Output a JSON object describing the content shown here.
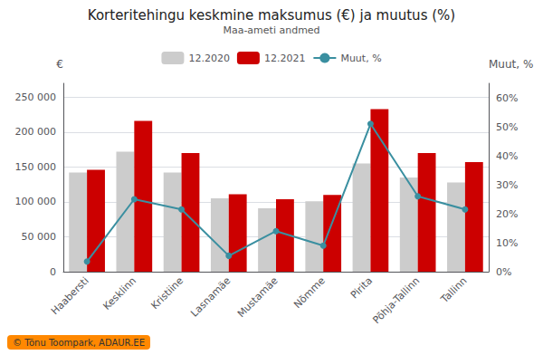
{
  "chart_data": {
    "type": "bar",
    "title": "Korteritehingu keskmine maksumus (€) ja muutus (%)",
    "subtitle": "Maa-ameti andmed",
    "ylabel": "€",
    "y2label": "Muut, %",
    "annotation": "© Tõnu Toompark, ADAUR.EE",
    "categories": [
      "Haabersti",
      "Kesklinn",
      "Kristiine",
      "Lasnamäe",
      "Mustamäe",
      "Nõmme",
      "Pirita",
      "Põhja-Tallinn",
      "Tallinn"
    ],
    "series": [
      {
        "name": "12.2020",
        "type": "bar",
        "color": "#cccccc",
        "values": [
          142000,
          172000,
          142000,
          105000,
          91000,
          101000,
          155000,
          135000,
          128000
        ]
      },
      {
        "name": "12.2021",
        "type": "bar",
        "color": "#cc0000",
        "values": [
          146000,
          216000,
          170000,
          111000,
          104000,
          110000,
          233000,
          170000,
          157000
        ]
      },
      {
        "name": "Muut, %",
        "type": "line",
        "axis": "y2",
        "color": "#3a8fa0",
        "marker": "circle",
        "values": [
          0.035,
          0.25,
          0.215,
          0.055,
          0.14,
          0.09,
          0.51,
          0.26,
          0.215
        ]
      }
    ],
    "ylim": [
      0,
      270000
    ],
    "yticks": [
      0,
      {
        "value": 50000,
        "label": "50 000"
      },
      {
        "value": 100000,
        "label": "100 000"
      },
      {
        "value": 150000,
        "label": "150 000"
      },
      {
        "value": 200000,
        "label": "200 000"
      },
      {
        "value": 250000,
        "label": "250 000"
      }
    ],
    "y2lim": [
      0,
      0.65
    ],
    "y2ticks": [
      {
        "value": 0.0,
        "label": "0%"
      },
      {
        "value": 0.1,
        "label": "10%"
      },
      {
        "value": 0.2,
        "label": "20%"
      },
      {
        "value": 0.3,
        "label": "30%"
      },
      {
        "value": 0.4,
        "label": "40%"
      },
      {
        "value": 0.5,
        "label": "50%"
      },
      {
        "value": 0.6,
        "label": "60%"
      }
    ],
    "grid": true,
    "legend": "upper center"
  }
}
